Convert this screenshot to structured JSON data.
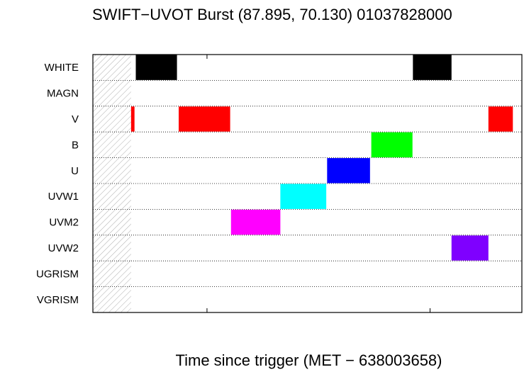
{
  "chart_data": {
    "type": "bar",
    "title": "SWIFT−UVOT Burst (87.895, 70.130) 01037828000",
    "xlabel": "Time since trigger (MET − 638003658)",
    "ylabel": "",
    "grid": true,
    "x_tick_labels": "none printed",
    "xlim": [
      0,
      100
    ],
    "categories": [
      "WHITE",
      "MAGN",
      "V",
      "B",
      "U",
      "UVW1",
      "UVM2",
      "UVW2",
      "UGRISM",
      "VGRISM"
    ],
    "hatched_interval": [
      0,
      8.9
    ],
    "exposures": [
      {
        "filter": "WHITE",
        "start": 10.0,
        "end": 19.6,
        "color": "#000000"
      },
      {
        "filter": "WHITE",
        "start": 74.6,
        "end": 83.6,
        "color": "#000000"
      },
      {
        "filter": "V",
        "start": 8.9,
        "end": 9.7,
        "color": "#ff0000"
      },
      {
        "filter": "V",
        "start": 20.0,
        "end": 32.0,
        "color": "#ff0000"
      },
      {
        "filter": "V",
        "start": 92.2,
        "end": 97.9,
        "color": "#ff0000"
      },
      {
        "filter": "B",
        "start": 64.9,
        "end": 74.5,
        "color": "#00ff00"
      },
      {
        "filter": "U",
        "start": 54.6,
        "end": 64.6,
        "color": "#0000ff"
      },
      {
        "filter": "UVW1",
        "start": 43.7,
        "end": 54.4,
        "color": "#00ffff"
      },
      {
        "filter": "UVM2",
        "start": 32.2,
        "end": 43.7,
        "color": "#ff00ff"
      },
      {
        "filter": "UVW2",
        "start": 83.6,
        "end": 92.2,
        "color": "#7f00ff"
      }
    ],
    "x_ticks": [
      26.6,
      78.6,
      100
    ]
  }
}
